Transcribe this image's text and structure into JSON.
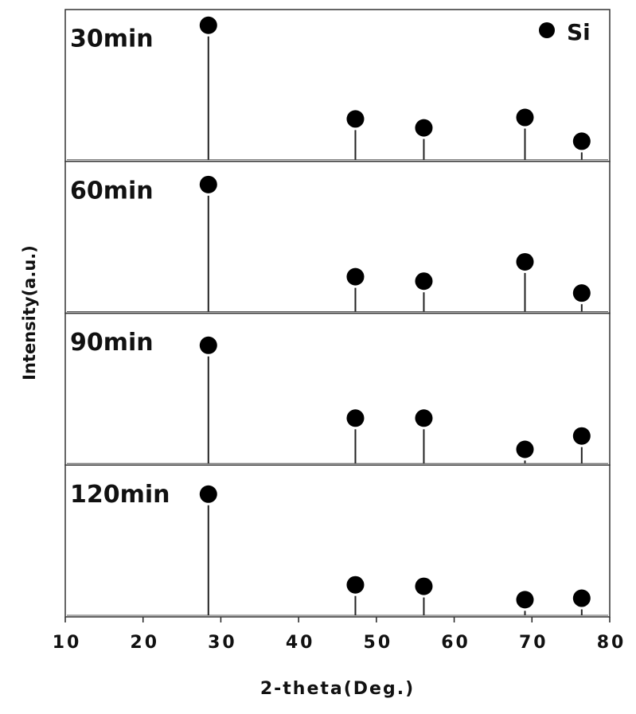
{
  "chart_data": {
    "type": "stem",
    "x": [
      28.4,
      47.3,
      56.1,
      69.1,
      76.4
    ],
    "series": [
      {
        "name": "30min",
        "color": "#222222",
        "values": [
          83,
          20,
          14,
          21,
          5
        ]
      },
      {
        "name": "60min",
        "color": "#222222",
        "values": [
          78,
          16,
          13,
          26,
          5
        ]
      },
      {
        "name": "90min",
        "color": "#222222",
        "values": [
          72,
          23,
          23,
          2,
          11
        ]
      },
      {
        "name": "120min",
        "color": "#222222",
        "values": [
          74,
          13,
          12,
          3,
          4
        ]
      }
    ],
    "marker_label": "Si",
    "xlim": [
      10,
      80
    ],
    "xticks": [
      10,
      20,
      30,
      40,
      50,
      60,
      70,
      80
    ],
    "ylim": [
      0,
      100
    ],
    "xlabel": "2-theta(Deg.)",
    "ylabel": "Intensity(a.u.)"
  }
}
